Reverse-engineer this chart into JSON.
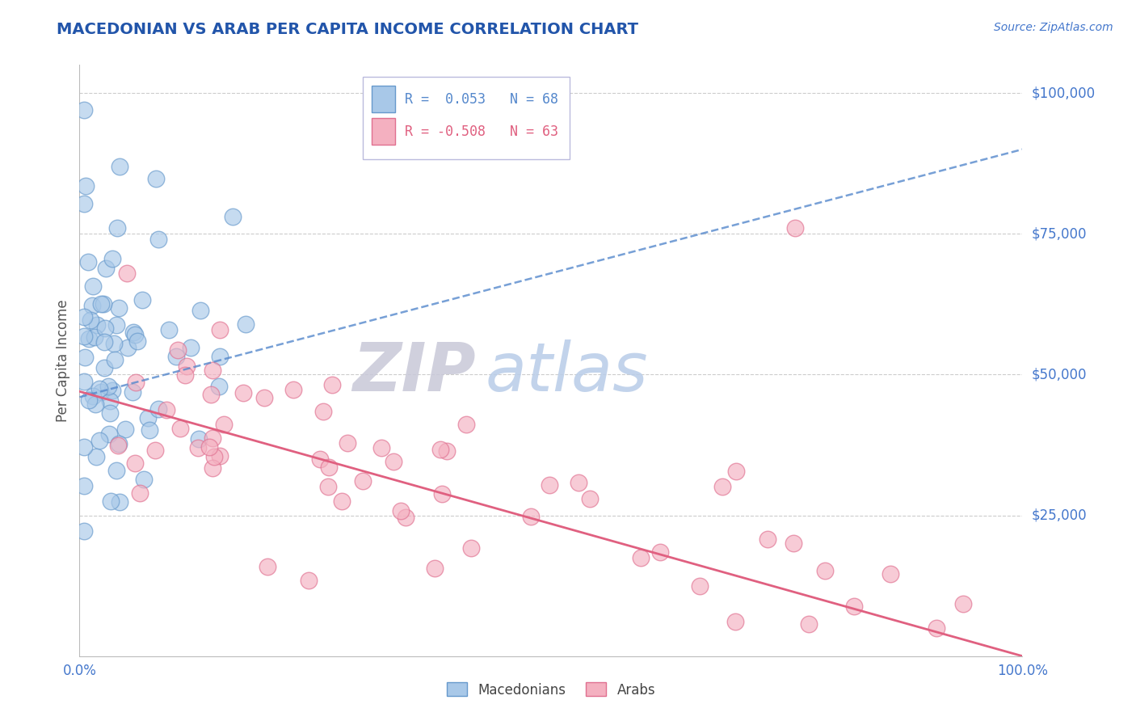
{
  "title": "MACEDONIAN VS ARAB PER CAPITA INCOME CORRELATION CHART",
  "source": "Source: ZipAtlas.com",
  "ylabel": "Per Capita Income",
  "xlim": [
    0.0,
    1.0
  ],
  "ylim": [
    0,
    105000
  ],
  "macedonian_color": "#a8c8e8",
  "arab_color": "#f4b0c0",
  "macedonian_edge_color": "#6699cc",
  "arab_edge_color": "#e07090",
  "macedonian_trend_color": "#5588cc",
  "arab_trend_color": "#e06080",
  "watermark_zip_color": "#c8c8d8",
  "watermark_atlas_color": "#b8cce8",
  "title_color": "#2255aa",
  "axis_color": "#4477cc",
  "grid_color": "#cccccc",
  "macedonians_label": "Macedonians",
  "arabs_label": "Arabs",
  "macedonian_R": 0.053,
  "arab_R": -0.508,
  "macedonian_N": 68,
  "arab_N": 63,
  "mac_trend_x0": 0.0,
  "mac_trend_y0": 46000,
  "mac_trend_x1": 1.0,
  "mac_trend_y1": 90000,
  "arab_trend_x0": 0.0,
  "arab_trend_y0": 47000,
  "arab_trend_x1": 1.0,
  "arab_trend_y1": 0
}
